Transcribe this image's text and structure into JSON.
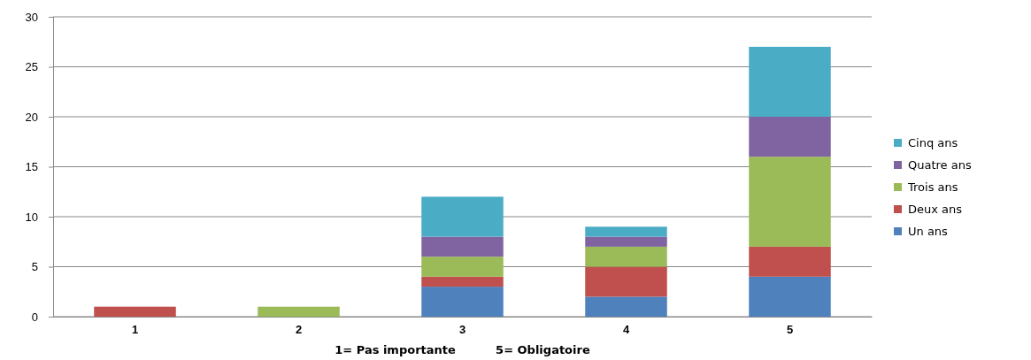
{
  "chart_data": {
    "type": "bar",
    "stacked": true,
    "xlabel": "1= Pas importante          5= Obligatoire",
    "categories": [
      "1",
      "2",
      "3",
      "4",
      "5"
    ],
    "series": [
      {
        "name": "Un ans",
        "color": "#4f81bd",
        "values": [
          0,
          0,
          3,
          2,
          4
        ]
      },
      {
        "name": "Deux ans",
        "color": "#c0504d",
        "values": [
          1,
          0,
          1,
          3,
          3
        ]
      },
      {
        "name": "Trois ans",
        "color": "#9bbb59",
        "values": [
          0,
          1,
          2,
          2,
          9
        ]
      },
      {
        "name": "Quatre ans",
        "color": "#8064a2",
        "values": [
          0,
          0,
          2,
          1,
          4
        ]
      },
      {
        "name": "Cinq ans",
        "color": "#4bacc6",
        "values": [
          0,
          0,
          4,
          1,
          7
        ]
      }
    ],
    "ylim": [
      0,
      30
    ],
    "yticks": [
      0,
      5,
      10,
      15,
      20,
      25,
      30
    ],
    "grid": "y",
    "legend": "right"
  }
}
